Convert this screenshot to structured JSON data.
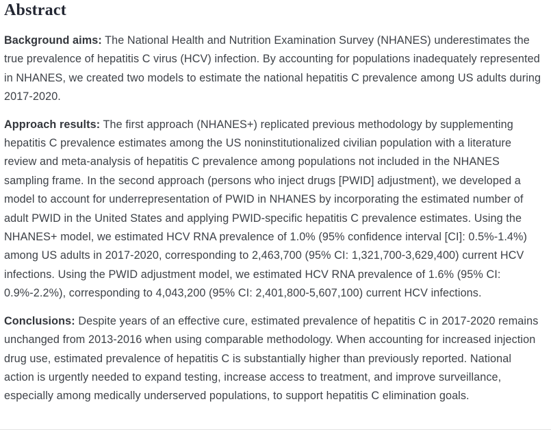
{
  "heading": "Abstract",
  "paragraphs": [
    {
      "label": "Background aims:",
      "text": " The National Health and Nutrition Examination Survey (NHANES) underestimates the true prevalence of hepatitis C virus (HCV) infection. By accounting for populations inadequately represented in NHANES, we created two models to estimate the national hepatitis C prevalence among US adults during 2017-2020."
    },
    {
      "label": "Approach results:",
      "text": " The first approach (NHANES+) replicated previous methodology by supplementing hepatitis C prevalence estimates among the US noninstitutionalized civilian population with a literature review and meta-analysis of hepatitis C prevalence among populations not included in the NHANES sampling frame. In the second approach (persons who inject drugs [PWID] adjustment), we developed a model to account for underrepresentation of PWID in NHANES by incorporating the estimated number of adult PWID in the United States and applying PWID-specific hepatitis C prevalence estimates. Using the NHANES+ model, we estimated HCV RNA prevalence of 1.0% (95% confidence interval [CI]: 0.5%-1.4%) among US adults in 2017-2020, corresponding to 2,463,700 (95% CI: 1,321,700-3,629,400) current HCV infections. Using the PWID adjustment model, we estimated HCV RNA prevalence of 1.6% (95% CI: 0.9%-2.2%), corresponding to 4,043,200 (95% CI: 2,401,800-5,607,100) current HCV infections."
    },
    {
      "label": "Conclusions:",
      "text": " Despite years of an effective cure, estimated prevalence of hepatitis C in 2017-2020 remains unchanged from 2013-2016 when using comparable methodology. When accounting for increased injection drug use, estimated prevalence of hepatitis C is substantially higher than previously reported. National action is urgently needed to expand testing, increase access to treatment, and improve surveillance, especially among medically underserved populations, to support hepatitis C elimination goals."
    }
  ],
  "colors": {
    "heading": "#232733",
    "body_text": "#3d4147",
    "divider": "#e3e3e3",
    "background": "#ffffff"
  }
}
